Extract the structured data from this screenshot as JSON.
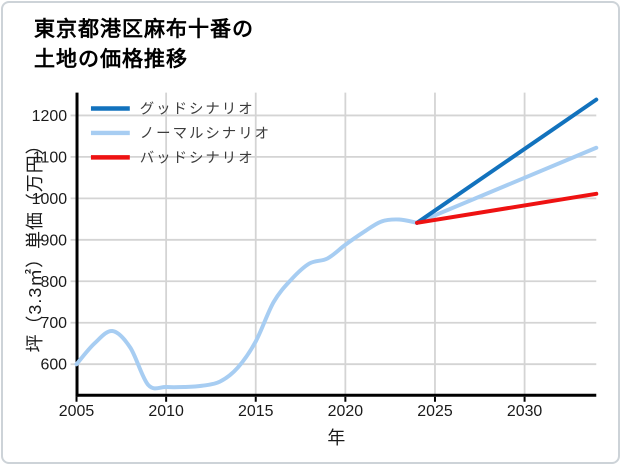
{
  "window": {
    "background": "#ffffff",
    "border_color": "#cdd3d8"
  },
  "title": {
    "line1": "東京都港区麻布十番の",
    "line2": "土地の価格推移"
  },
  "chart_data": {
    "type": "line",
    "title": "東京都港区麻布十番の土地の価格推移",
    "xlabel": "年",
    "ylabel": "坪（3.3㎡）単価（万円）",
    "x_range": [
      2005,
      2034
    ],
    "y_range": [
      525,
      1255
    ],
    "x_ticks": [
      2005,
      2010,
      2015,
      2020,
      2025,
      2030
    ],
    "y_ticks": [
      600,
      700,
      800,
      900,
      1000,
      1100,
      1200
    ],
    "grid": true,
    "legend_position": "upper-left",
    "colors": {
      "grid": "#d4d4d4",
      "axis": "#000000",
      "tick_label": "#1a1a1a",
      "legend_text": "#3c3c3c",
      "good": "#1272bd",
      "normal": "#a7cdf2",
      "bad": "#ee1212"
    },
    "history": {
      "color": "#a7cdf2",
      "x": [
        2005,
        2006,
        2007,
        2008,
        2009,
        2010,
        2011,
        2012,
        2013,
        2014,
        2015,
        2016,
        2017,
        2018,
        2019,
        2020,
        2021,
        2022,
        2023,
        2024
      ],
      "values": [
        600,
        650,
        680,
        640,
        550,
        545,
        545,
        548,
        558,
        592,
        655,
        750,
        805,
        843,
        855,
        888,
        918,
        944,
        949,
        941
      ]
    },
    "scenarios": [
      {
        "id": "good",
        "name": "グッドシナリオ",
        "color": "#1272bd",
        "x": [
          2024,
          2034
        ],
        "values": [
          941,
          1238
        ]
      },
      {
        "id": "normal",
        "name": "ノーマルシナリオ",
        "color": "#a7cdf2",
        "x": [
          2024,
          2034
        ],
        "values": [
          941,
          1122
        ]
      },
      {
        "id": "bad",
        "name": "バッドシナリオ",
        "color": "#ee1212",
        "x": [
          2024,
          2034
        ],
        "values": [
          941,
          1011
        ]
      }
    ]
  }
}
